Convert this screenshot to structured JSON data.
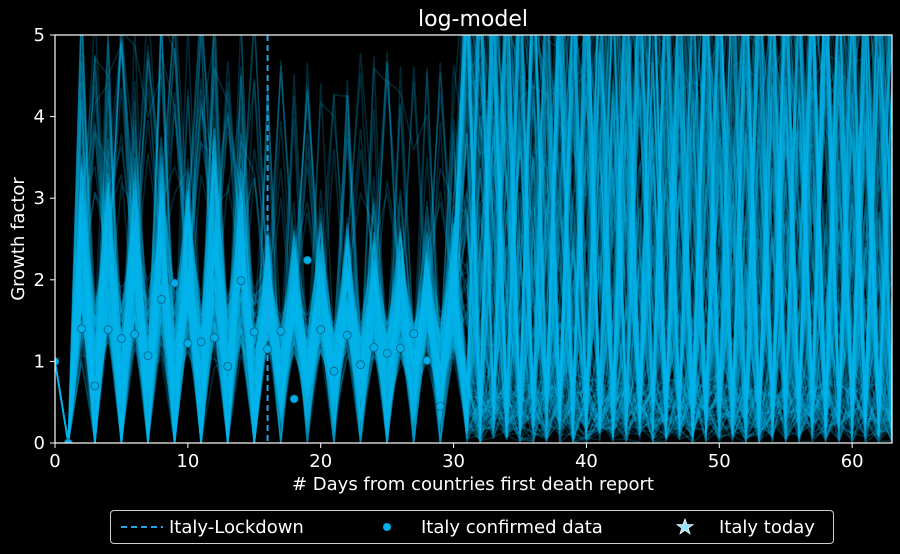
{
  "chart_data": {
    "type": "line",
    "title": "log-model",
    "xlabel": "# Days from countries first death report",
    "ylabel": "Growth factor",
    "xlim": [
      0,
      63
    ],
    "ylim": [
      0,
      5
    ],
    "xticks": [
      0,
      10,
      20,
      30,
      40,
      50,
      60
    ],
    "yticks": [
      0,
      1,
      2,
      3,
      4,
      5
    ],
    "grid": false,
    "colors": {
      "background": "#000000",
      "simulation_lines": "#00b4ee",
      "lockdown_line": "#1ea7e6",
      "data_points": "#00aee8",
      "text": "#ffffff"
    },
    "lockdown_day": 16,
    "series": [
      {
        "name": "Italy confirmed data",
        "kind": "scatter",
        "x": [
          0,
          1,
          2,
          3,
          4,
          5,
          6,
          7,
          8,
          9,
          10,
          11,
          12,
          13,
          14,
          15,
          16,
          17,
          18,
          19,
          20,
          21,
          22,
          23,
          24,
          25,
          26,
          27,
          28,
          29
        ],
        "y": [
          1.0,
          0.0,
          1.4,
          0.7,
          1.39,
          1.28,
          1.33,
          1.07,
          1.76,
          1.96,
          1.22,
          1.24,
          1.29,
          0.94,
          1.99,
          1.36,
          1.15,
          1.37,
          0.54,
          2.24,
          1.39,
          0.88,
          1.32,
          0.96,
          1.17,
          1.1,
          1.16,
          1.34,
          1.01,
          0.45
        ]
      }
    ],
    "simulation_regions": [
      {
        "x_range": [
          0,
          1
        ],
        "shape": "initial-decline",
        "y_center": [
          1.0,
          0.0
        ]
      },
      {
        "x_range": [
          1,
          16
        ],
        "y_center": 1.45,
        "y_spread": 2.3
      },
      {
        "x_range": [
          16,
          31
        ],
        "y_center": 1.3,
        "y_spread": 1.6
      },
      {
        "x_range": [
          31,
          63
        ],
        "y_center": 2.5,
        "y_spread": 5.0
      }
    ],
    "legend": {
      "placement": "bottom-center",
      "entries": [
        {
          "label": "Italy-Lockdown",
          "marker": "dashed-line"
        },
        {
          "label": "Italy confirmed data",
          "marker": "dot"
        },
        {
          "label": "Italy today",
          "marker": "star"
        }
      ]
    }
  }
}
